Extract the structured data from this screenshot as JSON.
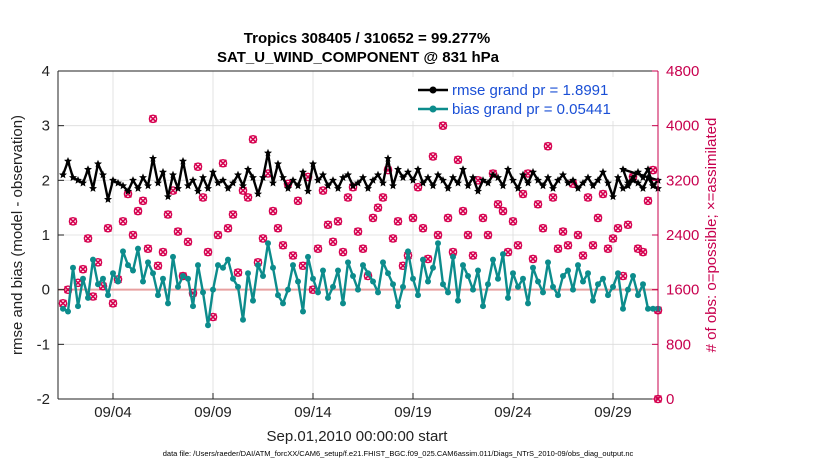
{
  "chart_data": {
    "type": "line",
    "title": "Tropics 308405 / 310652 = 99.277%",
    "subtitle": "SAT_U_WIND_COMPONENT @ 831 hPa",
    "xlabel": "Sep.01,2010 00:00:00 start",
    "ylabel": "rmse and bias (model - observation)",
    "y2label": "# of obs: o=possible; ×=assimilated",
    "footnote": "data file: /Users/raeder/DAI/ATM_forcXX/CAM6_setup/f.e21.FHIST_BGC.f09_025.CAM6assim.011/Diags_NTrS_2010-09/obs_diag_output.nc",
    "xlim": [
      0.75,
      30.75
    ],
    "ylim": [
      -2,
      4
    ],
    "y2lim": [
      0,
      4800
    ],
    "xtick_values": [
      3.5,
      8.5,
      13.5,
      18.5,
      23.5,
      28.5
    ],
    "xtick_labels": [
      "09/04",
      "09/09",
      "09/14",
      "09/19",
      "09/24",
      "09/29"
    ],
    "ytick_values": [
      -2,
      -1,
      0,
      1,
      2,
      3,
      4
    ],
    "ytick_labels": [
      "-2",
      "-1",
      "0",
      "1",
      "2",
      "3",
      "4"
    ],
    "y2tick_values": [
      0,
      800,
      1600,
      2400,
      3200,
      4000,
      4800
    ],
    "y2tick_labels": [
      "0",
      "800",
      "1600",
      "2400",
      "3200",
      "4000",
      "4800"
    ],
    "series": [
      {
        "name": "rmse grand pr = 1.8991",
        "axis": "left",
        "color": "#000000",
        "marker": "star",
        "x_start": 1.0,
        "x_step": 0.25,
        "values": [
          2.1,
          2.35,
          2.05,
          2.0,
          1.95,
          2.2,
          1.85,
          2.3,
          2.1,
          1.65,
          2.0,
          1.95,
          1.9,
          1.8,
          2.0,
          1.85,
          2.05,
          1.9,
          2.4,
          1.95,
          2.15,
          1.7,
          2.1,
          1.85,
          2.35,
          1.9,
          2.0,
          1.8,
          2.05,
          1.85,
          2.15,
          1.95,
          2.0,
          1.85,
          1.95,
          2.1,
          1.9,
          2.2,
          2.05,
          1.75,
          2.05,
          2.5,
          1.95,
          2.3,
          2.05,
          1.85,
          2.0,
          1.9,
          2.15,
          1.8,
          2.3,
          2.0,
          2.1,
          1.9,
          2.0,
          1.85,
          2.05,
          2.1,
          1.9,
          1.95,
          2.05,
          1.85,
          2.0,
          2.1,
          1.95,
          2.4,
          1.9,
          2.2,
          2.05,
          2.15,
          2.0,
          2.2,
          1.95,
          2.05,
          1.9,
          2.1,
          2.0,
          1.85,
          2.05,
          1.95,
          2.2,
          1.9,
          2.05,
          1.8,
          2.0,
          1.95,
          2.1,
          2.05,
          1.9,
          2.2,
          2.0,
          1.85,
          2.1,
          1.95,
          2.15,
          2.0,
          1.9,
          2.05,
          1.85,
          2.0,
          2.1,
          1.95,
          2.0,
          1.85,
          1.95,
          2.05,
          1.9,
          2.0,
          2.15,
          1.95,
          1.7,
          2.05,
          1.85,
          1.9,
          2.0,
          1.95,
          1.85,
          2.05,
          1.9,
          2.0
        ],
        "xy": [
          [
            29.0,
            2.2
          ],
          [
            29.25,
            1.95
          ],
          [
            29.5,
            2.05
          ],
          [
            29.75,
            2.15
          ],
          [
            30.0,
            2.05
          ],
          [
            30.25,
            2.2
          ],
          [
            30.5,
            1.9
          ],
          [
            30.75,
            1.85
          ]
        ]
      },
      {
        "name": "bias grand pr = 0.05441",
        "axis": "left",
        "color": "#0c8c8c",
        "marker": "circle",
        "x_start": 1.0,
        "x_step": 0.25,
        "values": [
          -0.35,
          -0.4,
          0.4,
          -0.3,
          0.2,
          -0.15,
          0.55,
          0.1,
          0.2,
          -0.1,
          0.3,
          0.15,
          0.7,
          0.45,
          0.35,
          0.75,
          0.15,
          0.5,
          0.3,
          -0.1,
          0.2,
          -0.25,
          0.6,
          0.05,
          0.25,
          0.2,
          -0.3,
          0.45,
          -0.05,
          -0.65,
          0.0,
          0.45,
          0.4,
          0.55,
          0.2,
          0.05,
          -0.55,
          0.3,
          -0.2,
          0.45,
          0.25,
          0.85,
          0.4,
          -0.1,
          -0.25,
          0.0,
          0.45,
          0.15,
          -0.4,
          0.6,
          0.2,
          -0.05,
          0.35,
          -0.15,
          0.05,
          0.35,
          -0.25,
          0.5,
          0.25,
          0.0,
          0.45,
          0.3,
          0.15,
          -0.05,
          0.5,
          0.3,
          0.1,
          -0.3,
          0.05,
          0.7,
          0.2,
          -0.1,
          0.55,
          0.15,
          0.4,
          0.85,
          0.1,
          -0.05,
          0.6,
          -0.2,
          0.45,
          0.25,
          0.0,
          0.35,
          -0.3,
          0.1,
          0.55,
          0.2,
          0.65,
          -0.15,
          0.3,
          0.05,
          0.2,
          -0.25,
          0.4,
          0.15,
          -0.05,
          0.5,
          0.05,
          -0.1,
          0.25,
          0.35,
          0.0,
          0.45,
          0.15,
          0.3,
          -0.2,
          0.1,
          0.2,
          -0.1,
          0.05,
          0.3,
          -0.35,
          0.0,
          0.25,
          -0.1,
          0.1,
          -0.35,
          -0.35,
          -0.35
        ]
      },
      {
        "name": "possible",
        "axis": "right",
        "color": "#d6004f",
        "marker": "o",
        "x_start": 1.0,
        "x_step": 0.25,
        "values": [
          1400,
          1600,
          2600,
          1700,
          1900,
          2350,
          1500,
          2000,
          1650,
          2500,
          1400,
          1750,
          2600,
          3000,
          2400,
          2750,
          2900,
          2200,
          4100,
          1950,
          2150,
          2700,
          3050,
          2450,
          1800,
          2300,
          1550,
          3400,
          2950,
          2150,
          1200,
          2400,
          3450,
          2500,
          2700,
          1850,
          3050,
          2950,
          3800,
          2000,
          2350,
          3300,
          2750,
          2500,
          2250,
          3150,
          2100,
          2900,
          1950,
          3250,
          1600,
          2200,
          3050,
          2550,
          2300,
          2600,
          2150,
          2950,
          3100,
          2450,
          2200,
          1800,
          2650,
          2800,
          2950,
          3350,
          2350,
          2600,
          1950,
          2100,
          2650,
          3100,
          2500,
          2050,
          3550,
          2400,
          4000,
          2650,
          2150,
          3500,
          2750,
          2400,
          2100,
          3200,
          2650,
          2400,
          3300,
          2850,
          2750,
          2150,
          2600,
          2250,
          3000,
          3300,
          2050,
          2850,
          2500,
          3700,
          2950,
          2200,
          2450,
          2250,
          3150,
          2400,
          2100,
          2950,
          2250,
          2650,
          3000,
          2200,
          2350,
          2500,
          1800,
          2550,
          3250,
          2200,
          2150,
          2900,
          3350,
          1300
        ],
        "xy": [
          [
            30.75,
            0
          ]
        ]
      },
      {
        "name": "assimilated",
        "axis": "right",
        "color": "#d6004f",
        "marker": "x",
        "x_start": 1.0,
        "x_step": 0.25,
        "values": [
          1400,
          1600,
          2600,
          1700,
          1900,
          2350,
          1500,
          2000,
          1650,
          2500,
          1400,
          1750,
          2600,
          3000,
          2400,
          2750,
          2900,
          2200,
          4100,
          1950,
          2150,
          2700,
          3050,
          2450,
          1800,
          2300,
          1550,
          3400,
          2950,
          2150,
          1200,
          2400,
          3450,
          2500,
          2700,
          1850,
          3050,
          2950,
          3800,
          2000,
          2350,
          3300,
          2750,
          2500,
          2250,
          3150,
          2100,
          2900,
          1950,
          3250,
          1600,
          2200,
          3050,
          2550,
          2300,
          2600,
          2150,
          2950,
          3100,
          2450,
          2200,
          1800,
          2650,
          2800,
          2950,
          3350,
          2350,
          2600,
          1950,
          2100,
          2650,
          3100,
          2500,
          2050,
          3550,
          2400,
          4000,
          2650,
          2150,
          3500,
          2750,
          2400,
          2100,
          3200,
          2650,
          2400,
          3300,
          2850,
          2750,
          2150,
          2600,
          2250,
          3000,
          3300,
          2050,
          2850,
          2500,
          3700,
          2950,
          2200,
          2450,
          2250,
          3150,
          2400,
          2100,
          2950,
          2250,
          2650,
          3000,
          2200,
          2350,
          2500,
          1800,
          2550,
          3250,
          2200,
          2150,
          2900,
          3350,
          1300
        ],
        "xy": [
          [
            30.75,
            0
          ]
        ]
      }
    ],
    "reference_line": {
      "y": 0,
      "color": "#e8a0a0"
    },
    "grid": true,
    "legend": "top-right"
  }
}
